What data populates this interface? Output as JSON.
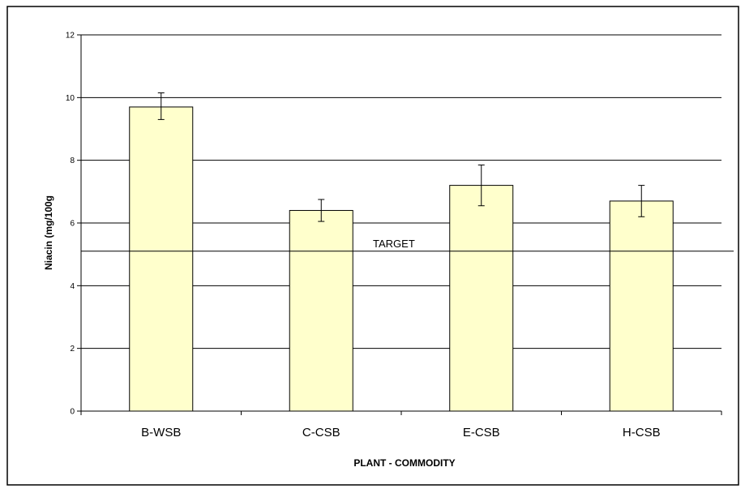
{
  "chart_data": {
    "type": "bar",
    "categories": [
      "B-WSB",
      "C-CSB",
      "E-CSB",
      "H-CSB"
    ],
    "values": [
      9.7,
      6.4,
      7.2,
      6.7
    ],
    "error_low": [
      9.3,
      6.05,
      6.55,
      6.2
    ],
    "error_high": [
      10.15,
      6.75,
      7.85,
      7.2
    ],
    "xlabel": "PLANT - COMMODITY",
    "ylabel": "Niacin (mg/100g",
    "ylim": [
      0,
      12
    ],
    "yticks": [
      0,
      2,
      4,
      6,
      8,
      10,
      12
    ],
    "grid": "horizontal",
    "reference_line": {
      "label": "TARGET",
      "value": 5.1
    },
    "colors": {
      "bar_fill": "#ffffcc",
      "bar_stroke": "#000000",
      "grid": "#000000",
      "frame": "#000000"
    }
  }
}
